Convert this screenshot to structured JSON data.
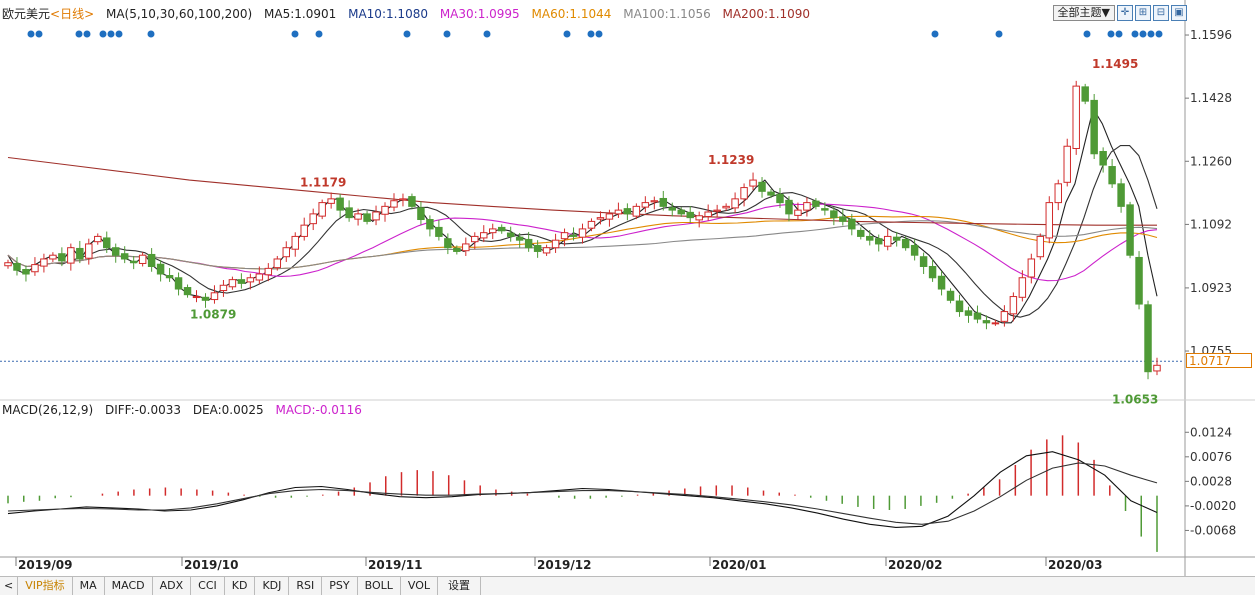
{
  "header": {
    "symbol": "欧元美元",
    "period": "<日线>",
    "ma_params": "MA(5,10,30,60,100,200)",
    "ma5": "MA5:1.0901",
    "ma10": "MA10:1.1080",
    "ma30": "MA30:1.0995",
    "ma60": "MA60:1.1044",
    "ma100": "MA100:1.1056",
    "ma200": "MA200:1.1090",
    "theme_button": "全部主题▼"
  },
  "colors": {
    "up": "#d22b2b",
    "down": "#4f9a36",
    "ma5": "#222222",
    "ma10": "#333333",
    "ma30": "#cc22cc",
    "ma60": "#e08a00",
    "ma100": "#888888",
    "ma200": "#a0302a",
    "dea": "#cc22cc",
    "dots": "#1f6fc0",
    "current_line": "#3a6ab0"
  },
  "macd_header": {
    "params": "MACD(26,12,9)",
    "diff": "DIFF:-0.0033",
    "dea": "DEA:0.0025",
    "macd": "MACD:-0.0116"
  },
  "current_price": "1.0717",
  "tabs": [
    "VIP指标",
    "MA",
    "MACD",
    "ADX",
    "CCI",
    "KD",
    "KDJ",
    "RSI",
    "PSY",
    "BOLL",
    "VOL",
    "设置"
  ],
  "chart_data": [
    {
      "type": "line",
      "title": "",
      "y_ticks": [
        "1.1596",
        "1.1428",
        "1.1260",
        "1.1092",
        "1.0923",
        "1.0755"
      ],
      "ylim": [
        1.063,
        1.162
      ],
      "x_labels": [
        "2019/09",
        "2019/10",
        "2019/11",
        "2019/12",
        "2020/01",
        "2020/02",
        "2020/03"
      ],
      "annotations": [
        {
          "label": "1.0879",
          "value": 1.0879
        },
        {
          "label": "1.1179",
          "value": 1.1179
        },
        {
          "label": "1.1239",
          "value": 1.1239
        },
        {
          "label": "1.1495",
          "value": 1.1495
        },
        {
          "label": "1.0653",
          "value": 1.0653
        }
      ],
      "close_series": [
        1.099,
        1.097,
        1.096,
        1.0985,
        1.1,
        1.101,
        1.0995,
        1.103,
        1.1,
        1.104,
        1.106,
        1.103,
        1.101,
        1.1,
        1.099,
        1.101,
        1.098,
        1.096,
        1.095,
        1.092,
        1.0905,
        1.09,
        1.089,
        1.091,
        1.093,
        1.0945,
        1.0935,
        1.095,
        1.096,
        1.0975,
        1.1,
        1.103,
        1.106,
        1.109,
        1.112,
        1.115,
        1.116,
        1.113,
        1.111,
        1.112,
        1.11,
        1.1125,
        1.114,
        1.1155,
        1.116,
        1.114,
        1.1105,
        1.108,
        1.106,
        1.103,
        1.102,
        1.104,
        1.106,
        1.107,
        1.108,
        1.1075,
        1.106,
        1.105,
        1.103,
        1.102,
        1.103,
        1.105,
        1.107,
        1.106,
        1.108,
        1.11,
        1.111,
        1.112,
        1.113,
        1.112,
        1.114,
        1.115,
        1.1155,
        1.114,
        1.113,
        1.112,
        1.111,
        1.1115,
        1.1125,
        1.113,
        1.114,
        1.116,
        1.119,
        1.121,
        1.118,
        1.117,
        1.115,
        1.112,
        1.113,
        1.115,
        1.114,
        1.113,
        1.111,
        1.11,
        1.108,
        1.106,
        1.105,
        1.104,
        1.106,
        1.105,
        1.103,
        1.101,
        1.098,
        1.095,
        1.092,
        1.089,
        1.086,
        1.085,
        1.084,
        1.083,
        1.083,
        1.086,
        1.09,
        1.095,
        1.1,
        1.106,
        1.115,
        1.12,
        1.13,
        1.146,
        1.142,
        1.128,
        1.125,
        1.12,
        1.114,
        1.101,
        1.088,
        1.07,
        1.0717
      ],
      "series": [
        {
          "name": "MA5",
          "values": [
            1.101,
            1.097,
            1.096,
            1.0985,
            1.1,
            1.101,
            1.0995,
            1.103,
            1.1,
            1.104,
            1.106,
            1.103,
            1.101,
            1.1,
            1.099,
            1.101,
            1.098,
            1.096,
            1.095,
            1.092,
            1.0905,
            1.09,
            1.089,
            1.091,
            1.093,
            1.0945,
            1.0935,
            1.095,
            1.096,
            1.0975,
            1.1,
            1.103,
            1.106,
            1.109,
            1.112,
            1.115,
            1.116,
            1.113,
            1.111,
            1.112,
            1.11,
            1.1125,
            1.114,
            1.1155,
            1.116,
            1.114,
            1.1105,
            1.108,
            1.106,
            1.103,
            1.102,
            1.104,
            1.106,
            1.107,
            1.108,
            1.1075,
            1.106,
            1.105,
            1.103,
            1.102,
            1.103,
            1.105,
            1.107,
            1.106,
            1.108,
            1.11,
            1.111,
            1.112,
            1.113,
            1.112,
            1.114,
            1.115,
            1.1155,
            1.114,
            1.113,
            1.112,
            1.111,
            1.1115,
            1.1125,
            1.113,
            1.114,
            1.116,
            1.119,
            1.121,
            1.118,
            1.117,
            1.115,
            1.112,
            1.113,
            1.115,
            1.114,
            1.113,
            1.111,
            1.11,
            1.108,
            1.106,
            1.105,
            1.104,
            1.106,
            1.105,
            1.103,
            1.101,
            1.098,
            1.095,
            1.092,
            1.089,
            1.086,
            1.085,
            1.084,
            1.083,
            1.083,
            1.086,
            1.09,
            1.095,
            1.1,
            1.106,
            1.115,
            1.12,
            1.13,
            1.14,
            1.136,
            1.13,
            1.125,
            1.12,
            1.114,
            1.101,
            1.0901
          ]
        },
        {
          "name": "MA200",
          "values": [
            1.127,
            1.125,
            1.123,
            1.121,
            1.1195,
            1.118,
            1.1165,
            1.115,
            1.114,
            1.113,
            1.1122,
            1.1115,
            1.111,
            1.1105,
            1.11,
            1.1097,
            1.1094,
            1.1092,
            1.109,
            1.109
          ]
        }
      ]
    },
    {
      "type": "bar",
      "title": "",
      "y_ticks": [
        "0.0124",
        "0.0076",
        "0.0028",
        "-0.0020",
        "-0.0068"
      ],
      "ylim": [
        -0.0118,
        0.0148
      ],
      "macd_hist": [
        -0.0015,
        -0.0012,
        -0.001,
        -0.0005,
        -0.0003,
        0.0,
        0.0004,
        0.0008,
        0.0012,
        0.0014,
        0.0016,
        0.0014,
        0.0012,
        0.001,
        0.0006,
        0.0002,
        -0.0002,
        -0.0004,
        -0.0004,
        -0.0002,
        0.0002,
        0.0008,
        0.0016,
        0.0026,
        0.0038,
        0.0046,
        0.005,
        0.0048,
        0.004,
        0.003,
        0.002,
        0.0012,
        0.0008,
        0.0004,
        0.0,
        -0.0004,
        -0.0006,
        -0.0006,
        -0.0004,
        -0.0002,
        0.0002,
        0.0006,
        0.001,
        0.0014,
        0.0018,
        0.002,
        0.002,
        0.0016,
        0.001,
        0.0006,
        0.0002,
        -0.0004,
        -0.001,
        -0.0016,
        -0.0022,
        -0.0026,
        -0.0028,
        -0.0026,
        -0.002,
        -0.0014,
        -0.0006,
        0.0004,
        0.0016,
        0.0032,
        0.006,
        0.009,
        0.011,
        0.0118,
        0.0104,
        0.007,
        0.002,
        -0.003,
        -0.008,
        -0.011
      ],
      "diff": [
        -0.0035,
        -0.003,
        -0.0026,
        -0.0022,
        -0.0024,
        -0.0026,
        -0.003,
        -0.0028,
        -0.002,
        -0.0008,
        0.0006,
        0.0016,
        0.0018,
        0.0012,
        0.0004,
        -0.0002,
        -0.0004,
        -0.0002,
        0.0002,
        0.0004,
        0.0006,
        0.001,
        0.0014,
        0.0012,
        0.0008,
        0.0004,
        0.0,
        -0.0004,
        -0.001,
        -0.0016,
        -0.0024,
        -0.0034,
        -0.0046,
        -0.0056,
        -0.0062,
        -0.006,
        -0.004,
        0.0,
        0.0046,
        0.0078,
        0.0086,
        0.007,
        0.004,
        -0.001,
        -0.0033
      ],
      "dea": [
        -0.003,
        -0.0028,
        -0.0026,
        -0.0025,
        -0.0026,
        -0.0028,
        -0.0028,
        -0.0024,
        -0.0016,
        -0.0006,
        0.0004,
        0.001,
        0.0012,
        0.001,
        0.0006,
        0.0003,
        0.0001,
        0.0001,
        0.0003,
        0.0004,
        0.0006,
        0.0008,
        0.001,
        0.001,
        0.0008,
        0.0005,
        0.0002,
        -0.0002,
        -0.0007,
        -0.0012,
        -0.0018,
        -0.0026,
        -0.0035,
        -0.0044,
        -0.0052,
        -0.0056,
        -0.005,
        -0.003,
        -0.0002,
        0.003,
        0.0054,
        0.0064,
        0.0058,
        0.004,
        0.0025
      ]
    }
  ]
}
